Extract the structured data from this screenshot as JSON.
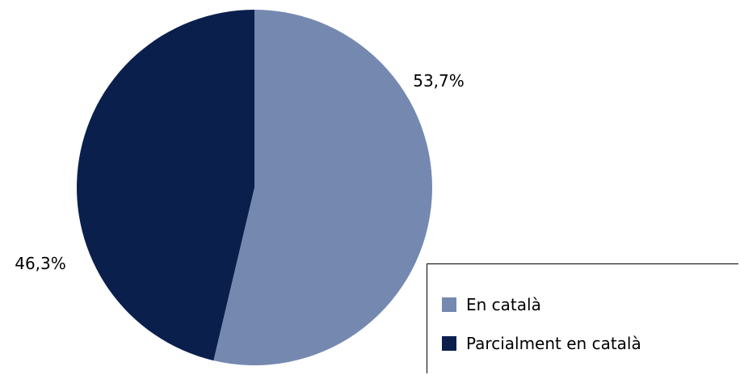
{
  "chart_data": {
    "type": "pie",
    "categories": [
      "En català",
      "Parcialment en català"
    ],
    "values": [
      53.7,
      46.3
    ],
    "data_labels": [
      "53,7%",
      "46,3%"
    ],
    "colors": [
      "#7589b0",
      "#0b1f4d"
    ],
    "legend_position": "bottom-right",
    "title": ""
  }
}
